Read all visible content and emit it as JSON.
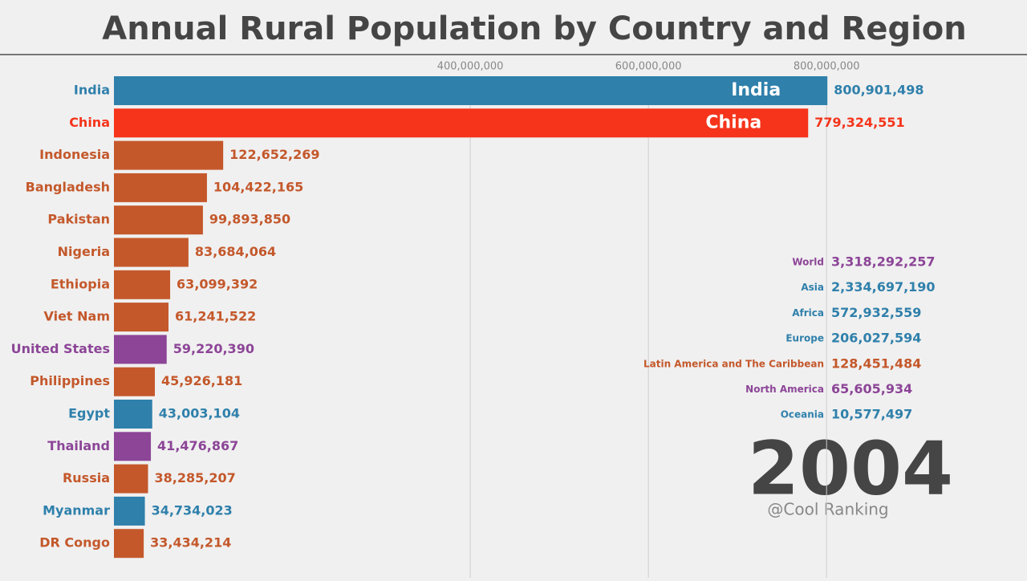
{
  "chart_data": {
    "type": "bar",
    "orientation": "horizontal",
    "title": "Annual Rural Population by Country and Region",
    "categories": [
      "India",
      "China",
      "Indonesia",
      "Bangladesh",
      "Pakistan",
      "Nigeria",
      "Ethiopia",
      "Viet Nam",
      "United States",
      "Philippines",
      "Egypt",
      "Thailand",
      "Russia",
      "Myanmar",
      "DR Congo"
    ],
    "values": [
      800901498,
      779324551,
      122652269,
      104422165,
      99893850,
      83684064,
      63099392,
      61241522,
      59220390,
      45926181,
      43003104,
      41476867,
      38285207,
      34734023,
      33434214
    ],
    "value_labels": [
      "800,901,498",
      "779,324,551",
      "122,652,269",
      "104,422,165",
      "99,893,850",
      "83,684,064",
      "63,099,392",
      "61,241,522",
      "59,220,390",
      "45,926,181",
      "43,003,104",
      "41,476,867",
      "38,285,207",
      "34,734,023",
      "33,434,214"
    ],
    "colors": [
      "#2f80ab",
      "#f5341b",
      "#c4582b",
      "#c4582b",
      "#c4582b",
      "#c4582b",
      "#c4582b",
      "#c4582b",
      "#8c4597",
      "#c4582b",
      "#2f80ab",
      "#8c4597",
      "#c4582b",
      "#2f80ab",
      "#c4582b"
    ],
    "xlim": [
      0,
      1025000000
    ],
    "xticks": [
      {
        "value": 400000000,
        "label": "400,000,000"
      },
      {
        "value": 600000000,
        "label": "600,000,000"
      },
      {
        "value": 800000000,
        "label": "800,000,000"
      }
    ],
    "grid": true,
    "regions": {
      "names": [
        "World",
        "Asia",
        "Africa",
        "Europe",
        "Latin America and The Caribbean",
        "North America",
        "Oceania"
      ],
      "values": [
        "3,318,292,257",
        "2,334,697,190",
        "572,932,559",
        "206,027,594",
        "128,451,484",
        "65,605,934",
        "10,577,497"
      ],
      "colors": [
        "#8c4597",
        "#2f80ab",
        "#2f80ab",
        "#2f80ab",
        "#c4582b",
        "#8c4597",
        "#2f80ab"
      ]
    },
    "year": "2004",
    "watermark": "@Cool Ranking"
  }
}
